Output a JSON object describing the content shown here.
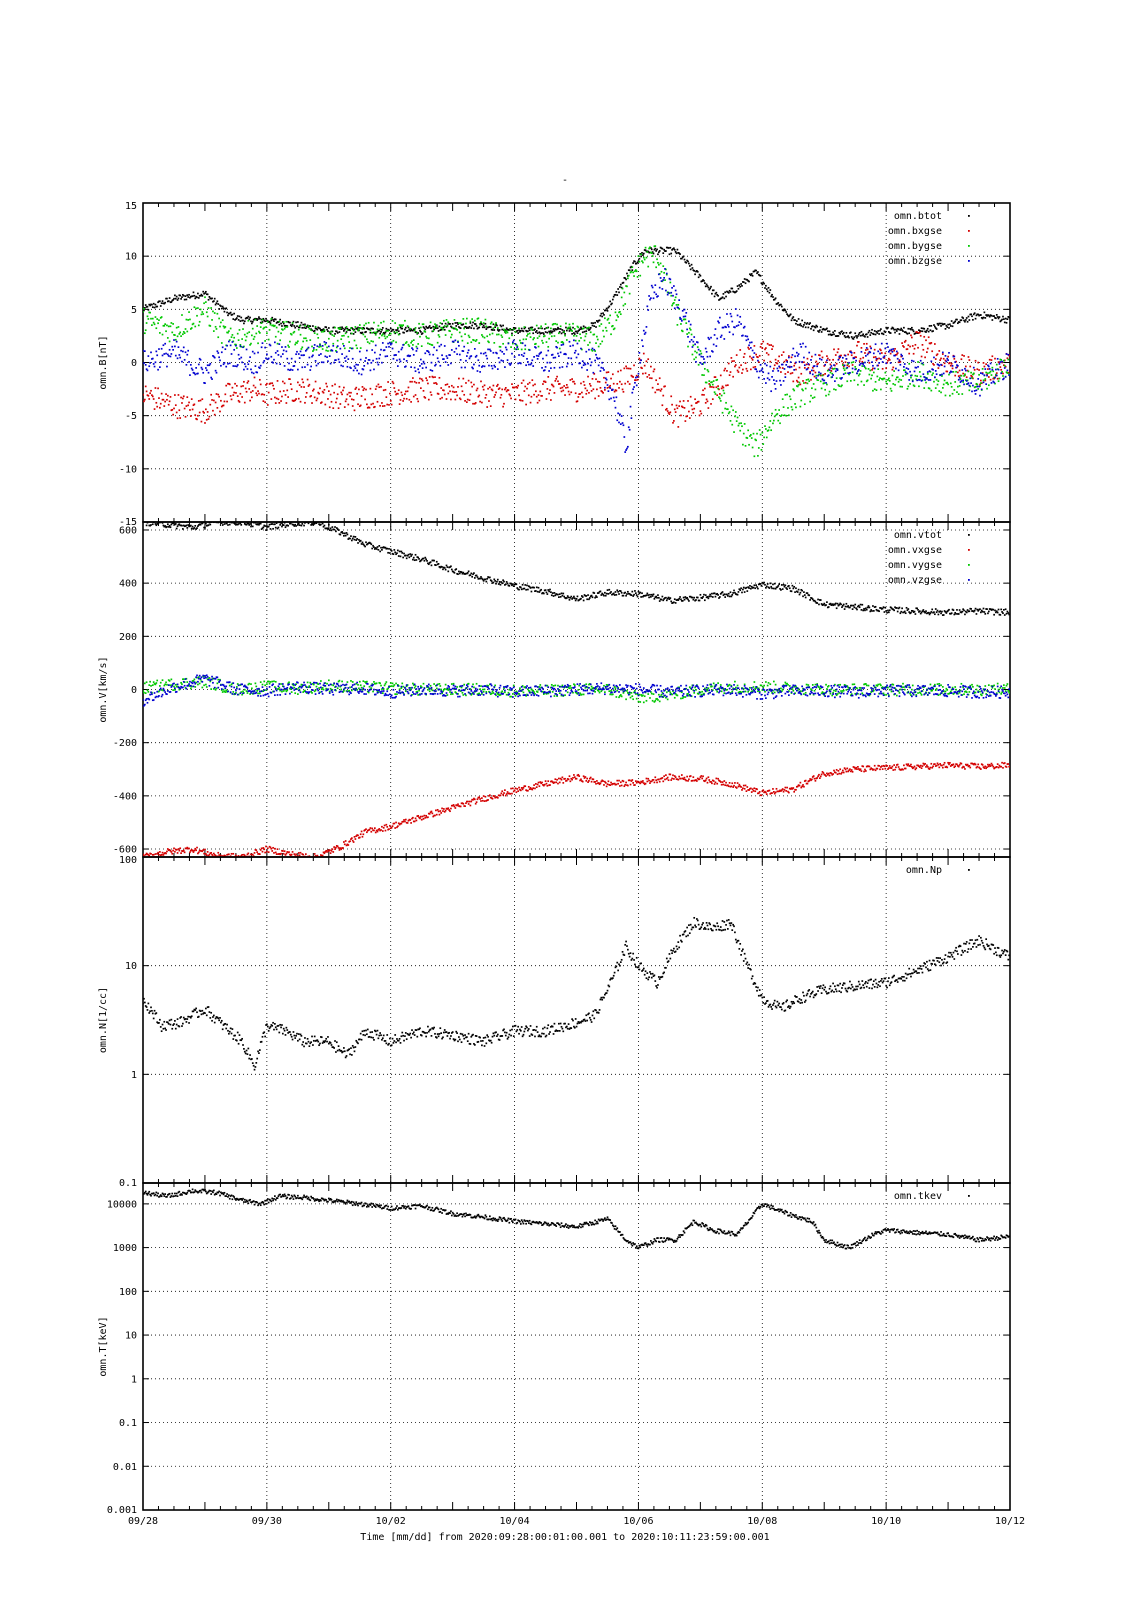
{
  "title": "-",
  "x_axis": {
    "ticks": [
      "09/28",
      "09/30",
      "10/02",
      "10/04",
      "10/06",
      "10/08",
      "10/10",
      "10/12"
    ],
    "tick_days": [
      0,
      2,
      4,
      6,
      8,
      10,
      12,
      14
    ],
    "label": "Time [mm/dd]  from 2020:09:28:00:01:00.001  to  2020:10:11:23:59:00.001",
    "range_days": [
      0,
      14
    ]
  },
  "colors": {
    "black": "#000000",
    "red": "#d40000",
    "green": "#00c800",
    "blue": "#0000d0"
  },
  "chart_data": [
    {
      "type": "scatter",
      "ylabel": "omn.B[nT]",
      "yscale": "linear",
      "ylim": [
        -15,
        15
      ],
      "yticks": [
        -15,
        -10,
        -5,
        0,
        5,
        10,
        15
      ],
      "ytick_labels": [
        "-15",
        "-10",
        "-5",
        "0",
        "5",
        "10",
        "15"
      ],
      "grid": true,
      "legend_position": "top-right",
      "series": [
        {
          "name": "omn.btot",
          "color": "#000000",
          "x": [
            0,
            0.5,
            1,
            1.4,
            1.6,
            2,
            2.5,
            3,
            3.5,
            4,
            4.5,
            5,
            5.5,
            6,
            6.5,
            7,
            7.3,
            7.6,
            7.9,
            8.1,
            8.3,
            8.6,
            9,
            9.3,
            9.6,
            9.9,
            10.2,
            10.5,
            11,
            11.5,
            12,
            12.5,
            13,
            13.5,
            14
          ],
          "y": [
            5,
            6,
            6.5,
            4.5,
            4,
            4,
            3.5,
            3,
            3,
            3,
            3,
            3.5,
            3.5,
            3,
            3,
            3,
            3.5,
            6,
            9,
            10.5,
            10.5,
            10.5,
            8,
            6,
            7,
            8.5,
            6,
            4,
            3,
            2.5,
            3,
            3,
            3.5,
            4.5,
            4
          ]
        },
        {
          "name": "omn.bxgse",
          "color": "#d40000",
          "x": [
            0,
            0.5,
            1,
            1.4,
            1.8,
            2,
            2.5,
            3,
            3.3,
            3.8,
            4.5,
            5,
            5.5,
            6,
            6.5,
            7,
            7.5,
            7.8,
            8.1,
            8.4,
            8.6,
            8.8,
            9,
            9.3,
            9.6,
            10,
            10.3,
            10.6,
            11,
            11.5,
            12,
            12.5,
            13,
            13.5,
            14
          ],
          "y": [
            -3,
            -4,
            -4.5,
            -3,
            -2.5,
            -3,
            -2.5,
            -3,
            -3.5,
            -3,
            -2.5,
            -2.5,
            -3,
            -3,
            -2.5,
            -2.5,
            -2,
            -1.5,
            0,
            -3,
            -5,
            -4.5,
            -4,
            -2,
            0,
            1,
            0,
            -1,
            0,
            1,
            0,
            2,
            0,
            -1,
            0
          ]
        },
        {
          "name": "omn.bygse",
          "color": "#00c800",
          "x": [
            0,
            0.5,
            1,
            1.4,
            1.8,
            2,
            2.5,
            3,
            3.5,
            4,
            4.5,
            5,
            5.5,
            6,
            6.5,
            7,
            7.3,
            7.6,
            7.9,
            8.1,
            8.3,
            8.6,
            9,
            9.3,
            9.6,
            9.9,
            10.2,
            10.6,
            11,
            11.5,
            12,
            12.5,
            13,
            13.5,
            14
          ],
          "y": [
            4,
            3,
            5,
            2,
            3,
            3,
            2.5,
            2,
            2.5,
            3,
            2.5,
            3,
            3,
            2,
            2.5,
            2.5,
            2,
            4,
            8,
            10,
            10,
            5,
            0,
            -3,
            -6,
            -8,
            -5,
            -3,
            -2,
            -1,
            -2,
            -1,
            -2,
            -2,
            0
          ]
        },
        {
          "name": "omn.bzgse",
          "color": "#0000d0",
          "x": [
            0,
            0.5,
            1,
            1.4,
            1.8,
            2,
            2.5,
            3,
            3.5,
            4,
            4.5,
            5,
            5.5,
            6,
            6.5,
            7,
            7.3,
            7.6,
            7.8,
            8.0,
            8.2,
            8.4,
            8.7,
            9.0,
            9.3,
            9.6,
            9.9,
            10.2,
            10.6,
            11,
            11.5,
            12,
            12.5,
            13,
            13.5,
            14
          ],
          "y": [
            0,
            1,
            -1,
            1,
            0,
            1,
            0,
            1,
            0,
            1,
            0,
            1,
            0,
            1,
            0,
            1,
            0,
            -3,
            -8,
            0,
            6,
            8,
            5,
            0,
            3,
            4,
            0,
            -2,
            1,
            -1,
            0,
            1,
            -1,
            0,
            -2,
            0
          ]
        }
      ]
    },
    {
      "type": "scatter",
      "ylabel": "omn.V[km/s]",
      "yscale": "linear",
      "ylim": [
        -630,
        630
      ],
      "yticks": [
        -600,
        -400,
        -200,
        0,
        200,
        400,
        600
      ],
      "ytick_labels": [
        "-600",
        "-400",
        "-200",
        "0",
        "200",
        "400",
        "600"
      ],
      "grid": true,
      "legend_position": "top-right",
      "series": [
        {
          "name": "omn.vtot",
          "color": "#000000",
          "x": [
            0,
            0.4,
            0.8,
            1.2,
            1.6,
            2,
            2.4,
            2.8,
            3.2,
            3.6,
            4,
            4.5,
            5,
            5.5,
            6,
            6.5,
            7,
            7.5,
            8,
            8.5,
            9,
            9.5,
            10,
            10.5,
            11,
            11.5,
            12,
            12.5,
            13,
            13.5,
            14
          ],
          "y": [
            630,
            620,
            610,
            630,
            630,
            610,
            625,
            630,
            590,
            545,
            520,
            490,
            450,
            420,
            390,
            370,
            340,
            365,
            360,
            335,
            345,
            360,
            395,
            380,
            320,
            310,
            300,
            295,
            290,
            295,
            290
          ]
        },
        {
          "name": "omn.vxgse",
          "color": "#d40000",
          "x": [
            0,
            0.4,
            0.8,
            1.2,
            1.6,
            2,
            2.4,
            2.8,
            3.2,
            3.6,
            4,
            4.5,
            5,
            5.5,
            6,
            6.5,
            7,
            7.5,
            8,
            8.5,
            9,
            9.5,
            10,
            10.5,
            11,
            11.5,
            12,
            12.5,
            13,
            13.5,
            14
          ],
          "y": [
            -630,
            -610,
            -600,
            -625,
            -630,
            -600,
            -620,
            -630,
            -590,
            -535,
            -515,
            -480,
            -445,
            -410,
            -380,
            -355,
            -330,
            -355,
            -350,
            -330,
            -335,
            -355,
            -390,
            -375,
            -315,
            -300,
            -295,
            -290,
            -285,
            -290,
            -285
          ]
        },
        {
          "name": "omn.vygse",
          "color": "#00c800",
          "x": [
            0,
            0.5,
            1,
            1.5,
            2,
            2.5,
            3,
            3.5,
            4,
            4.5,
            5,
            5.5,
            6,
            6.5,
            7,
            7.5,
            8,
            8.5,
            9,
            9.5,
            10,
            10.5,
            11,
            11.5,
            12,
            12.5,
            13,
            13.5,
            14
          ],
          "y": [
            5,
            20,
            30,
            0,
            10,
            5,
            15,
            10,
            5,
            0,
            0,
            0,
            -5,
            -5,
            0,
            0,
            -30,
            -20,
            0,
            10,
            10,
            5,
            0,
            0,
            0,
            0,
            0,
            0,
            0
          ]
        },
        {
          "name": "omn.vzgse",
          "color": "#0000d0",
          "x": [
            0,
            0.5,
            1,
            1.5,
            2,
            2.5,
            3,
            3.5,
            4,
            4.5,
            5,
            5.5,
            6,
            6.5,
            7,
            7.5,
            8,
            8.5,
            9,
            9.5,
            10,
            10.5,
            11,
            11.5,
            12,
            12.5,
            13,
            13.5,
            14
          ],
          "y": [
            -40,
            10,
            40,
            0,
            -5,
            10,
            0,
            5,
            -10,
            0,
            -5,
            0,
            -10,
            -5,
            0,
            5,
            0,
            -10,
            -5,
            0,
            -15,
            -5,
            -5,
            -10,
            -5,
            -5,
            -5,
            -10,
            -10
          ]
        }
      ]
    },
    {
      "type": "scatter",
      "ylabel": "omn.N[1/cc]",
      "yscale": "log",
      "ylim": [
        0.1,
        100
      ],
      "yticks": [
        0.1,
        1,
        10,
        100
      ],
      "ytick_labels": [
        "0.1",
        "1",
        "10",
        "100"
      ],
      "grid": true,
      "legend_position": "top-right",
      "series": [
        {
          "name": "omn.Np",
          "color": "#000000",
          "x": [
            0,
            0.3,
            0.6,
            1,
            1.3,
            1.6,
            1.8,
            2,
            2.3,
            2.6,
            3,
            3.3,
            3.6,
            4,
            4.5,
            5,
            5.5,
            6,
            6.5,
            7,
            7.3,
            7.6,
            7.8,
            8.0,
            8.3,
            8.6,
            8.9,
            9.2,
            9.5,
            9.7,
            10,
            10.3,
            10.6,
            11,
            11.5,
            12,
            12.5,
            13,
            13.5,
            14
          ],
          "y": [
            5,
            2.8,
            3,
            4,
            2.8,
            2,
            1.2,
            2.8,
            2.5,
            2,
            2,
            1.5,
            2.5,
            2,
            2.5,
            2.3,
            2,
            2.5,
            2.5,
            3,
            3.5,
            8,
            15,
            10,
            7,
            15,
            25,
            22,
            25,
            12,
            5,
            4,
            5,
            6,
            6.5,
            7,
            9,
            12,
            17,
            12
          ]
        }
      ]
    },
    {
      "type": "scatter",
      "ylabel": "omn.T[keV]",
      "yscale": "log",
      "ylim": [
        0.001,
        30000
      ],
      "yticks": [
        0.001,
        0.01,
        0.1,
        1,
        10,
        100,
        1000,
        10000
      ],
      "ytick_labels": [
        "0.001",
        "0.01",
        "0.1",
        "1",
        "10",
        "100",
        "1000",
        "10000"
      ],
      "grid": true,
      "legend_position": "top-right",
      "series": [
        {
          "name": "omn.tkev",
          "color": "#000000",
          "x": [
            0,
            0.4,
            0.8,
            1.2,
            1.6,
            1.9,
            2.2,
            2.6,
            3,
            3.5,
            4,
            4.5,
            5,
            5.5,
            6,
            6.5,
            7,
            7.5,
            7.8,
            8.0,
            8.3,
            8.6,
            8.9,
            9.2,
            9.6,
            10,
            10.4,
            10.8,
            11,
            11.4,
            11.8,
            12,
            12.5,
            13,
            13.5,
            14
          ],
          "y": [
            18000,
            15000,
            20000,
            18000,
            12000,
            10000,
            15000,
            14000,
            12000,
            10000,
            8000,
            9000,
            6000,
            5000,
            4000,
            3500,
            3000,
            4500,
            1500,
            1000,
            1500,
            1500,
            4000,
            2500,
            2000,
            10000,
            6000,
            4000,
            1500,
            1000,
            2000,
            2500,
            2200,
            2000,
            1500,
            1800
          ]
        }
      ]
    }
  ]
}
